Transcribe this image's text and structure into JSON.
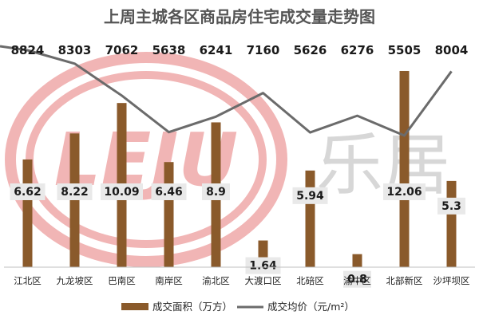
{
  "chart_data": {
    "type": "bar",
    "title": "上周主城各区商品房住宅成交量走势图",
    "categories": [
      "江北区",
      "九龙坡区",
      "巴南区",
      "南岸区",
      "渝北区",
      "大渡口区",
      "北碚区",
      "渝中区",
      "北部新区",
      "沙坪坝区"
    ],
    "series": [
      {
        "name": "成交面积（万方）",
        "type": "bar",
        "values": [
          6.62,
          8.22,
          10.09,
          6.46,
          8.9,
          1.64,
          5.94,
          0.8,
          12.06,
          5.3
        ],
        "color": "#8a5a2b"
      },
      {
        "name": "成交均价（元/m²）",
        "type": "line",
        "values": [
          8824,
          8303,
          7062,
          5638,
          6241,
          7160,
          5626,
          6276,
          5505,
          8004
        ],
        "color": "#6b6b6b"
      }
    ],
    "legend": "bottom",
    "grid": false
  },
  "watermark": {
    "logo_text": "LEJU",
    "brand_text": "乐居",
    "ring_color": "#e77a7a",
    "brand_color": "#b8b8b8"
  }
}
